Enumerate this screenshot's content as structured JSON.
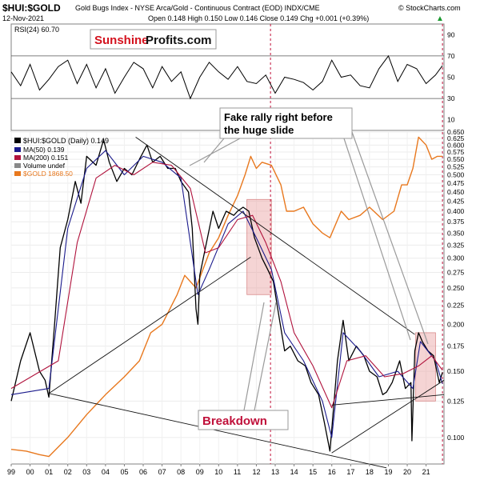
{
  "header": {
    "symbol": "$HUI:$GOLD",
    "description": "Gold Bugs Index - NYSE Arca/Gold - Continuous Contract (EOD)  INDX/CME",
    "copyright": "© StockCharts.com",
    "date": "12-Nov-2021",
    "quote": "Open 0.148  High 0.150  Low 0.146  Close 0.149  Chg +0.001 (+0.39%)",
    "quote_arrow": "▲"
  },
  "rsi": {
    "label": "RSI(24) 60.70",
    "ticks": [
      "90",
      "70",
      "50",
      "30",
      "10"
    ]
  },
  "logo": {
    "part1": "Sunshine",
    "part2": "Profits.com"
  },
  "legend": {
    "title": "$HUI:$GOLD (Daily) 0.149",
    "items": [
      {
        "label": "MA(50) 0.139",
        "color": "#1a1a8c"
      },
      {
        "label": "MA(200) 0.151",
        "color": "#b0123c"
      },
      {
        "label": "Volume undef",
        "color": "#888888"
      },
      {
        "label": "$GOLD 1868.50",
        "color": "#e8781e"
      }
    ]
  },
  "annotations": {
    "fake_rally_line1": "Fake rally right before",
    "fake_rally_line2": "the huge slide",
    "breakdown": "Breakdown"
  },
  "colors": {
    "hui": "#000000",
    "ma50": "#1a1a8c",
    "ma200": "#b0123c",
    "gold": "#e8781e",
    "highlight": "#e8a0a0",
    "vline": "#c0103a",
    "breakdown_text": "#c0103a",
    "logo_red": "#d4121e"
  },
  "chart_data": {
    "type": "line",
    "title": "$HUI:$GOLD (Daily) 0.149",
    "yscale": "log",
    "ylim": [
      0.085,
      0.65
    ],
    "y_ticks": [
      0.65,
      0.625,
      0.6,
      0.575,
      0.55,
      0.525,
      0.5,
      0.475,
      0.45,
      0.425,
      0.4,
      0.375,
      0.35,
      0.325,
      0.3,
      0.275,
      0.25,
      0.225,
      0.2,
      0.175,
      0.15,
      0.125,
      0.1
    ],
    "x_ticks": [
      "99",
      "00",
      "01",
      "02",
      "03",
      "04",
      "05",
      "06",
      "07",
      "08",
      "09",
      "10",
      "11",
      "12",
      "13",
      "14",
      "15",
      "16",
      "17",
      "18",
      "19",
      "20",
      "21"
    ],
    "xlim": [
      1999.0,
      2021.95
    ],
    "series": [
      {
        "name": "$HUI:$GOLD",
        "x": [
          1999.0,
          1999.5,
          2000.0,
          2000.5,
          2000.8,
          2001.0,
          2001.3,
          2001.6,
          2002.0,
          2002.4,
          2002.7,
          2003.0,
          2003.5,
          2003.9,
          2004.2,
          2004.6,
          2005.0,
          2005.4,
          2005.8,
          2006.2,
          2006.5,
          2006.9,
          2007.3,
          2007.7,
          2008.0,
          2008.4,
          2008.6,
          2008.8,
          2008.9,
          2009.0,
          2009.3,
          2009.7,
          2010.0,
          2010.4,
          2010.8,
          2011.0,
          2011.3,
          2011.6,
          2011.9,
          2012.3,
          2012.6,
          2012.9,
          2013.2,
          2013.5,
          2013.8,
          2014.2,
          2014.6,
          2014.9,
          2015.3,
          2015.6,
          2015.9,
          2016.0,
          2016.3,
          2016.6,
          2016.9,
          2017.3,
          2017.7,
          2018.0,
          2018.4,
          2018.7,
          2018.9,
          2019.2,
          2019.6,
          2019.9,
          2020.2,
          2020.25,
          2020.4,
          2020.6,
          2020.8,
          2021.1,
          2021.4,
          2021.7,
          2021.87
        ],
        "values": [
          0.125,
          0.16,
          0.19,
          0.15,
          0.142,
          0.128,
          0.2,
          0.32,
          0.38,
          0.48,
          0.42,
          0.56,
          0.53,
          0.62,
          0.54,
          0.48,
          0.52,
          0.5,
          0.55,
          0.6,
          0.54,
          0.56,
          0.52,
          0.52,
          0.48,
          0.45,
          0.36,
          0.22,
          0.2,
          0.27,
          0.32,
          0.4,
          0.36,
          0.4,
          0.39,
          0.4,
          0.41,
          0.4,
          0.34,
          0.3,
          0.28,
          0.26,
          0.21,
          0.17,
          0.175,
          0.16,
          0.155,
          0.14,
          0.13,
          0.11,
          0.092,
          0.105,
          0.16,
          0.205,
          0.16,
          0.175,
          0.165,
          0.15,
          0.145,
          0.13,
          0.132,
          0.14,
          0.16,
          0.135,
          0.14,
          0.098,
          0.17,
          0.19,
          0.18,
          0.17,
          0.165,
          0.14,
          0.149
        ]
      },
      {
        "name": "MA(50)",
        "x": [
          1999.0,
          2001.0,
          2002.0,
          2003.0,
          2004.0,
          2005.0,
          2006.0,
          2007.0,
          2008.0,
          2008.9,
          2009.5,
          2010.5,
          2011.3,
          2012.0,
          2012.8,
          2013.5,
          2014.5,
          2015.5,
          2016.0,
          2016.6,
          2017.5,
          2018.5,
          2019.5,
          2020.3,
          2020.7,
          2021.5,
          2021.87
        ],
        "values": [
          0.13,
          0.135,
          0.36,
          0.52,
          0.58,
          0.5,
          0.56,
          0.54,
          0.49,
          0.24,
          0.28,
          0.37,
          0.4,
          0.34,
          0.28,
          0.19,
          0.16,
          0.125,
          0.1,
          0.19,
          0.17,
          0.145,
          0.15,
          0.135,
          0.18,
          0.16,
          0.139
        ]
      },
      {
        "name": "MA(200)",
        "x": [
          1999.0,
          2001.5,
          2002.5,
          2003.5,
          2004.5,
          2005.5,
          2006.5,
          2007.5,
          2008.5,
          2009.3,
          2010.0,
          2011.0,
          2011.8,
          2012.5,
          2013.3,
          2014.0,
          2015.0,
          2016.0,
          2016.8,
          2017.8,
          2018.8,
          2019.8,
          2020.6,
          2021.3,
          2021.87
        ],
        "values": [
          0.135,
          0.16,
          0.33,
          0.49,
          0.53,
          0.5,
          0.54,
          0.53,
          0.46,
          0.31,
          0.32,
          0.38,
          0.39,
          0.33,
          0.26,
          0.19,
          0.155,
          0.12,
          0.16,
          0.165,
          0.145,
          0.148,
          0.155,
          0.165,
          0.151
        ]
      },
      {
        "name": "$GOLD (price overlay, unlabeled axis; plotted on ratio scale)",
        "x": [
          1999.0,
          1999.8,
          2000.5,
          2001.0,
          2002.0,
          2003.0,
          2004.0,
          2005.0,
          2005.8,
          2006.4,
          2007.0,
          2007.8,
          2008.2,
          2008.8,
          2009.5,
          2010.0,
          2010.5,
          2011.0,
          2011.4,
          2011.7,
          2012.0,
          2012.3,
          2012.8,
          2013.3,
          2013.6,
          2014.0,
          2014.5,
          2015.0,
          2015.5,
          2015.9,
          2016.5,
          2016.9,
          2017.5,
          2018.0,
          2018.7,
          2019.3,
          2019.7,
          2020.0,
          2020.3,
          2020.6,
          2021.0,
          2021.3,
          2021.6,
          2021.87
        ],
        "values": [
          0.093,
          0.092,
          0.09,
          0.089,
          0.1,
          0.115,
          0.13,
          0.145,
          0.16,
          0.19,
          0.2,
          0.24,
          0.27,
          0.25,
          0.31,
          0.34,
          0.39,
          0.44,
          0.5,
          0.56,
          0.52,
          0.54,
          0.53,
          0.47,
          0.4,
          0.4,
          0.41,
          0.37,
          0.35,
          0.34,
          0.4,
          0.38,
          0.39,
          0.41,
          0.38,
          0.4,
          0.47,
          0.47,
          0.52,
          0.63,
          0.6,
          0.55,
          0.56,
          0.56
        ]
      }
    ],
    "trendlines": [
      {
        "name": "upper-resistance",
        "points": [
          [
            2005.6,
            0.63
          ],
          [
            2020.4,
            0.188
          ]
        ]
      },
      {
        "name": "rising-support",
        "points": [
          [
            2001.0,
            0.131
          ],
          [
            2011.7,
            0.302
          ]
        ]
      },
      {
        "name": "lower-channel",
        "points": [
          [
            2001.0,
            0.131
          ],
          [
            2018.9,
            0.083
          ]
        ]
      },
      {
        "name": "lower-wedge-rising",
        "points": [
          [
            2016.0,
            0.091
          ],
          [
            2021.95,
            0.142
          ]
        ]
      },
      {
        "name": "breakdown-line",
        "points": [
          [
            2016.0,
            0.122
          ],
          [
            2021.95,
            0.13
          ]
        ]
      }
    ],
    "highlights": [
      {
        "x0": 2011.5,
        "x1": 2012.8,
        "y0": 0.24,
        "y1": 0.43
      },
      {
        "x0": 2020.45,
        "x1": 2021.5,
        "y0": 0.125,
        "y1": 0.19
      }
    ],
    "vlines": [
      2012.75,
      2021.87
    ],
    "rsi_series": {
      "x": [
        1999.0,
        1999.5,
        2000.0,
        2000.5,
        2001.0,
        2001.5,
        2002.0,
        2002.5,
        2003.0,
        2003.5,
        2004.0,
        2004.5,
        2005.0,
        2005.5,
        2006.0,
        2006.5,
        2007.0,
        2007.5,
        2008.0,
        2008.5,
        2009.0,
        2009.5,
        2010.0,
        2010.5,
        2011.0,
        2011.5,
        2012.0,
        2012.5,
        2013.0,
        2013.5,
        2014.0,
        2014.5,
        2015.0,
        2015.5,
        2016.0,
        2016.5,
        2017.0,
        2017.5,
        2018.0,
        2018.5,
        2019.0,
        2019.5,
        2020.0,
        2020.5,
        2021.0,
        2021.5,
        2021.87
      ],
      "values": [
        55,
        42,
        62,
        38,
        48,
        60,
        66,
        44,
        62,
        40,
        58,
        35,
        50,
        64,
        58,
        40,
        60,
        46,
        55,
        30,
        50,
        64,
        55,
        48,
        60,
        46,
        44,
        52,
        35,
        50,
        48,
        45,
        38,
        46,
        66,
        50,
        52,
        42,
        40,
        58,
        70,
        46,
        62,
        58,
        44,
        52,
        61
      ]
    },
    "rsi_ylim": [
      0,
      100
    ],
    "rsi_levels": [
      70,
      30
    ]
  }
}
